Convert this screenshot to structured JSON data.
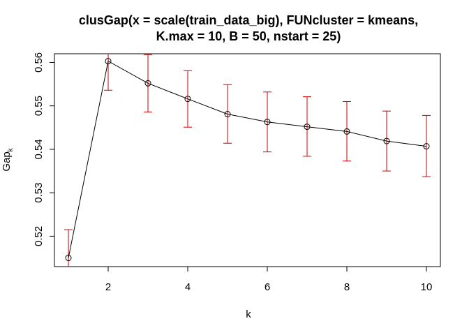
{
  "chart_data": {
    "type": "line",
    "title_lines": [
      "clusGap(x = scale(train_data_big), FUNcluster = kmeans,",
      "K.max = 10, B = 50, nstart = 25)"
    ],
    "xlabel": "k",
    "ylabel": "Gap",
    "ylabel_subscript": "k",
    "xlim": [
      1,
      10
    ],
    "ylim": [
      0.513,
      0.562
    ],
    "x_ticks": [
      2,
      4,
      6,
      8,
      10
    ],
    "y_ticks": [
      0.52,
      0.53,
      0.54,
      0.55,
      0.56
    ],
    "errorbar_color": "#CD0000",
    "line_color": "#000000",
    "series": [
      {
        "x": [
          1,
          2,
          3,
          4,
          5,
          6,
          7,
          8,
          9,
          10
        ],
        "values": [
          0.515,
          0.5603,
          0.5552,
          0.5516,
          0.5481,
          0.5463,
          0.5452,
          0.5441,
          0.5419,
          0.5407
        ],
        "err_low": [
          0.5095,
          0.5536,
          0.5486,
          0.5451,
          0.5414,
          0.5394,
          0.5384,
          0.5373,
          0.535,
          0.5337
        ],
        "err_high": [
          0.5215,
          0.5621,
          0.5618,
          0.5581,
          0.5549,
          0.5532,
          0.5521,
          0.551,
          0.5488,
          0.5478
        ]
      }
    ],
    "grid": false
  }
}
